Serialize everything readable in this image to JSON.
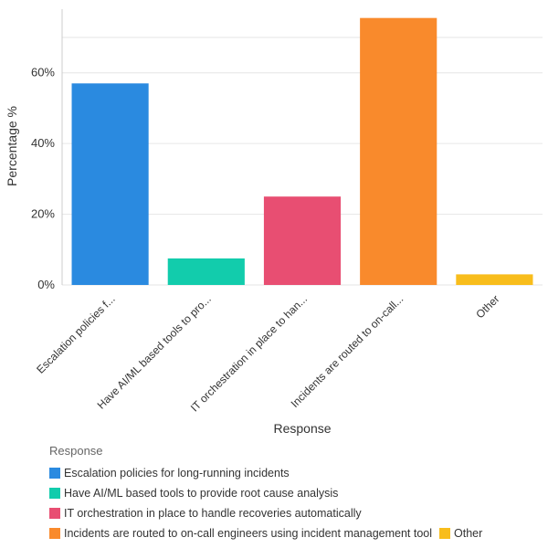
{
  "chart_data": {
    "type": "bar",
    "categories": [
      "Escalation policies for long-running incidents",
      "Have AI/ML based tools to provide root cause analysis",
      "IT orchestration in place to handle recoveries automatically",
      "Incidents are routed to on-call engineers using incident management tool",
      "Other"
    ],
    "category_labels": [
      "Escalation policies f...",
      "Have AI/ML based tools to pro...",
      "IT orchestration in place to han...",
      "Incidents are routed to on-call...",
      "Other"
    ],
    "values": [
      57,
      7.5,
      25,
      75.5,
      3
    ],
    "colors": [
      "#2a8ae0",
      "#12ccac",
      "#e84e72",
      "#f98a2c",
      "#f8bd1c"
    ],
    "title": "",
    "xlabel": "Response",
    "ylabel": "Percentage %",
    "ylim": [
      0,
      78
    ],
    "yticks": [
      0,
      20,
      40,
      60
    ],
    "ytick_labels": [
      "0%",
      "20%",
      "40%",
      "60%"
    ],
    "grid": true,
    "legend": {
      "title": "Response",
      "placement": "bottom-left",
      "entries": [
        "Escalation policies for long-running incidents",
        "Have AI/ML based tools to provide root cause analysis",
        "IT orchestration in place to handle recoveries automatically",
        "Incidents are routed to on-call engineers using incident management tool",
        "Other"
      ]
    }
  }
}
